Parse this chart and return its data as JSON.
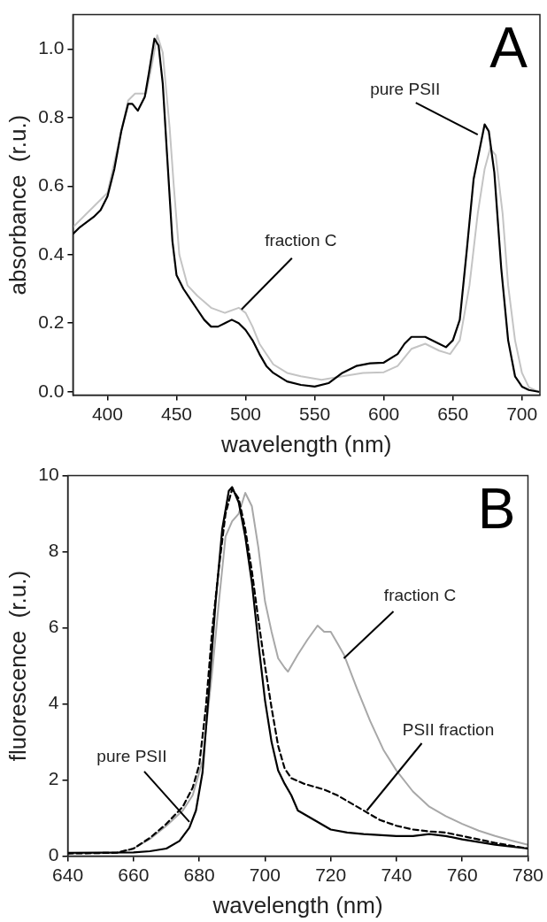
{
  "chart_data": [
    {
      "type": "line",
      "title": "A",
      "xlabel": "wavelength (nm)",
      "ylabel": "absorbance  (r.u.)",
      "xlim": [
        375,
        713
      ],
      "xticks": [
        400,
        450,
        500,
        550,
        600,
        650,
        700
      ],
      "ylim": [
        -0.01,
        1.1
      ],
      "yticks": [
        {
          "value": 0,
          "label": "0.0"
        },
        0.2,
        0.4,
        0.6,
        0.8,
        {
          "value": 1,
          "label": "1.0"
        }
      ],
      "grid": false,
      "annotations": [
        {
          "text": "fraction C",
          "x": 497,
          "y": 0.24
        },
        {
          "text": "pure PSII",
          "x": 668,
          "y": 0.75
        }
      ],
      "series": [
        {
          "color": "#c4c4c4",
          "x": [
            375,
            390,
            400,
            410,
            415,
            420,
            428,
            432,
            436,
            440,
            445,
            448,
            452,
            458,
            465,
            475,
            485,
            495,
            500,
            505,
            510,
            520,
            530,
            540,
            555,
            570,
            585,
            600,
            610,
            620,
            630,
            640,
            648,
            655,
            662,
            668,
            673,
            677,
            681,
            686,
            690,
            695,
            700,
            705,
            712
          ],
          "values": [
            0.48,
            0.54,
            0.58,
            0.76,
            0.85,
            0.87,
            0.87,
            0.95,
            1.04,
            0.99,
            0.77,
            0.6,
            0.4,
            0.31,
            0.28,
            0.245,
            0.23,
            0.245,
            0.23,
            0.19,
            0.14,
            0.08,
            0.055,
            0.045,
            0.035,
            0.045,
            0.055,
            0.057,
            0.075,
            0.125,
            0.14,
            0.12,
            0.11,
            0.15,
            0.31,
            0.52,
            0.65,
            0.71,
            0.69,
            0.52,
            0.31,
            0.15,
            0.055,
            0.013,
            0.0
          ]
        },
        {
          "color": "#000000",
          "x": [
            375,
            380,
            390,
            395,
            400,
            405,
            410,
            415,
            418,
            422,
            427,
            430,
            434,
            437,
            440,
            443,
            447,
            450,
            455,
            460,
            465,
            470,
            475,
            480,
            485,
            490,
            495,
            500,
            505,
            510,
            515,
            520,
            530,
            540,
            550,
            560,
            570,
            580,
            590,
            600,
            610,
            615,
            620,
            630,
            640,
            645,
            650,
            655,
            660,
            665,
            670,
            673,
            676,
            680,
            685,
            690,
            695,
            700,
            705,
            712
          ],
          "values": [
            0.46,
            0.48,
            0.51,
            0.53,
            0.57,
            0.65,
            0.76,
            0.84,
            0.84,
            0.82,
            0.86,
            0.93,
            1.03,
            1.01,
            0.9,
            0.7,
            0.44,
            0.34,
            0.3,
            0.27,
            0.24,
            0.21,
            0.19,
            0.19,
            0.2,
            0.21,
            0.2,
            0.18,
            0.15,
            0.11,
            0.075,
            0.055,
            0.03,
            0.02,
            0.015,
            0.025,
            0.055,
            0.075,
            0.083,
            0.085,
            0.11,
            0.14,
            0.16,
            0.16,
            0.14,
            0.13,
            0.15,
            0.21,
            0.41,
            0.62,
            0.72,
            0.78,
            0.76,
            0.64,
            0.36,
            0.15,
            0.045,
            0.015,
            0.005,
            0.0
          ]
        }
      ]
    },
    {
      "type": "line",
      "title": "B",
      "xlabel": "wavelength (nm)",
      "ylabel": "fluorescence  (r.u.)",
      "xlim": [
        640,
        780
      ],
      "xticks": [
        640,
        660,
        680,
        700,
        720,
        740,
        760,
        780
      ],
      "ylim": [
        0,
        10
      ],
      "yticks": [
        0,
        2,
        4,
        6,
        8,
        10
      ],
      "grid": false,
      "annotations": [
        {
          "text": "fraction C",
          "x": 724,
          "y": 5.2
        },
        {
          "text": "PSII fraction",
          "x": 731,
          "y": 1.2
        },
        {
          "text": "pure PSII",
          "x": 677,
          "y": 0.9
        }
      ],
      "series": [
        {
          "color": "#a8a8a8",
          "x": [
            640,
            655,
            660,
            665,
            670,
            675,
            678,
            681,
            684,
            686,
            688,
            690,
            692,
            694,
            696,
            698,
            700,
            702,
            704,
            706,
            707,
            710,
            713,
            716,
            718,
            720,
            722,
            724,
            728,
            732,
            736,
            740,
            745,
            750,
            755,
            760,
            765,
            770,
            775,
            780
          ],
          "values": [
            0.07,
            0.09,
            0.2,
            0.45,
            0.8,
            1.2,
            1.6,
            2.5,
            4.9,
            6.7,
            8.4,
            8.8,
            9.0,
            9.55,
            9.2,
            8.1,
            6.7,
            5.9,
            5.2,
            4.95,
            4.85,
            5.3,
            5.7,
            6.06,
            5.9,
            5.9,
            5.6,
            5.3,
            4.4,
            3.55,
            2.8,
            2.25,
            1.7,
            1.3,
            1.05,
            0.85,
            0.67,
            0.53,
            0.41,
            0.3
          ]
        },
        {
          "color": "#000000",
          "line_style": "dashed",
          "x": [
            640,
            655,
            660,
            665,
            670,
            675,
            678,
            680,
            682,
            684,
            686,
            688,
            690,
            692,
            694,
            696,
            698,
            700,
            702,
            704,
            706,
            708,
            712,
            718,
            722,
            730,
            735,
            740,
            745,
            750,
            755,
            760,
            770,
            780
          ],
          "values": [
            0.07,
            0.09,
            0.2,
            0.48,
            0.85,
            1.3,
            1.8,
            2.4,
            3.9,
            6.0,
            7.6,
            9.0,
            9.65,
            9.4,
            8.6,
            7.5,
            6.2,
            5.0,
            3.9,
            2.9,
            2.3,
            2.05,
            1.9,
            1.75,
            1.6,
            1.2,
            0.95,
            0.8,
            0.7,
            0.65,
            0.62,
            0.53,
            0.35,
            0.2
          ]
        },
        {
          "color": "#000000",
          "x": [
            640,
            660,
            665,
            670,
            674,
            677,
            679,
            681,
            683,
            685,
            687,
            689,
            690,
            692,
            694,
            696,
            698,
            700,
            702,
            704,
            706,
            708,
            710,
            715,
            720,
            725,
            730,
            740,
            745,
            750,
            755,
            760,
            770,
            780
          ],
          "values": [
            0.09,
            0.1,
            0.13,
            0.2,
            0.4,
            0.75,
            1.2,
            2.2,
            4.4,
            6.7,
            8.6,
            9.6,
            9.7,
            9.3,
            8.4,
            7.2,
            5.6,
            4.1,
            3.0,
            2.25,
            1.9,
            1.6,
            1.2,
            0.95,
            0.7,
            0.62,
            0.58,
            0.53,
            0.53,
            0.58,
            0.53,
            0.44,
            0.3,
            0.2
          ]
        }
      ]
    }
  ]
}
